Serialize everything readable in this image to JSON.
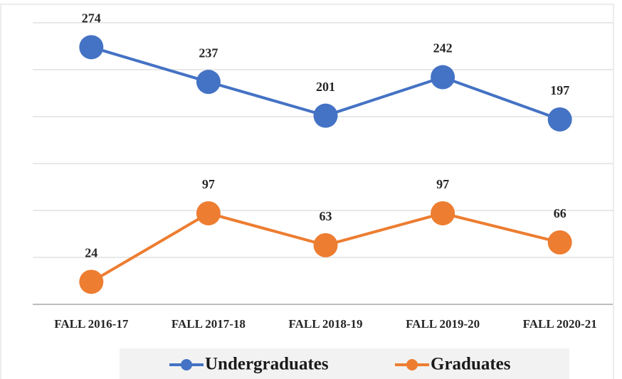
{
  "chart_data": {
    "type": "line",
    "categories": [
      "FALL 2016-17",
      "FALL 2017-18",
      "FALL 2018-19",
      "FALL 2019-20",
      "FALL 2020-21"
    ],
    "series": [
      {
        "name": "Undergraduates",
        "color": "#4472c4",
        "values": [
          274,
          237,
          201,
          242,
          197
        ]
      },
      {
        "name": "Graduates",
        "color": "#ed7d31",
        "values": [
          24,
          97,
          63,
          97,
          66
        ]
      }
    ],
    "ylim": [
      0,
      300
    ],
    "yticks": [
      0,
      50,
      100,
      150,
      200,
      250,
      300
    ],
    "grid": true,
    "legend": "bottom"
  }
}
